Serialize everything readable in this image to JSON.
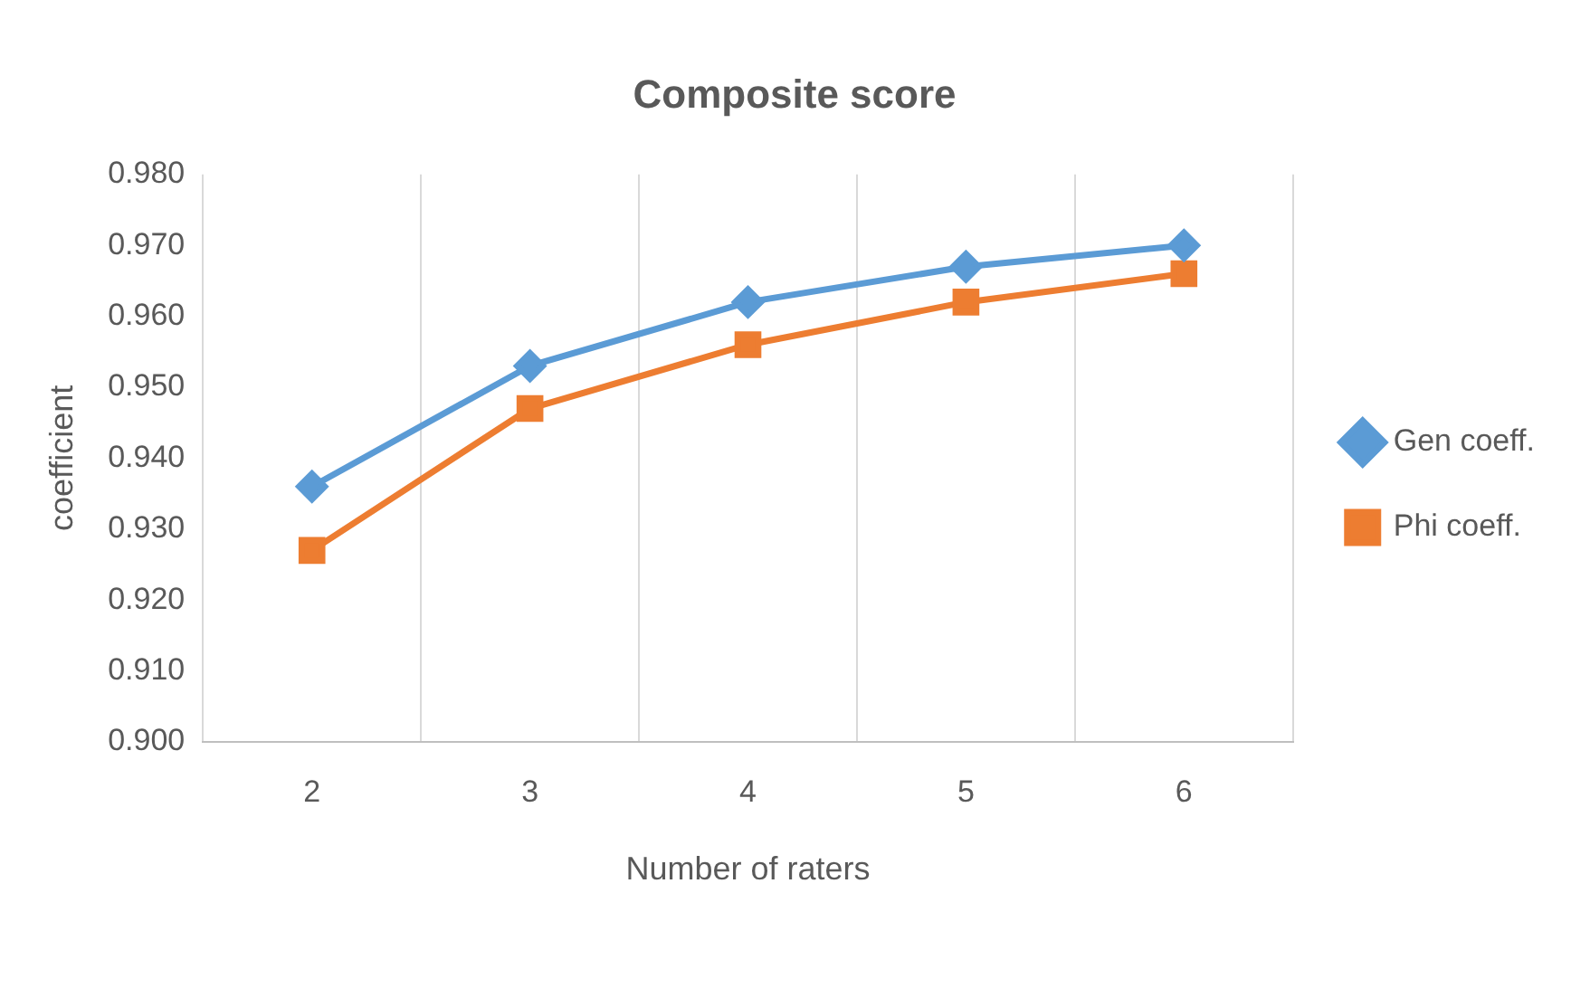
{
  "chart_data": {
    "type": "line",
    "title": "Composite score",
    "xlabel": "Number of raters",
    "ylabel": "coefficient",
    "categories": [
      "2",
      "3",
      "4",
      "5",
      "6"
    ],
    "series": [
      {
        "name": "Gen coeff.",
        "color": "#5b9bd5",
        "marker": "diamond",
        "values": [
          0.936,
          0.953,
          0.962,
          0.967,
          0.97
        ]
      },
      {
        "name": "Phi coeff.",
        "color": "#ed7d31",
        "marker": "square",
        "values": [
          0.927,
          0.947,
          0.956,
          0.962,
          0.966
        ]
      }
    ],
    "ylim": [
      0.9,
      0.98
    ],
    "yticks": [
      {
        "value": 0.9,
        "label": "0.900"
      },
      {
        "value": 0.91,
        "label": "0.910"
      },
      {
        "value": 0.92,
        "label": "0.920"
      },
      {
        "value": 0.93,
        "label": "0.930"
      },
      {
        "value": 0.94,
        "label": "0.940"
      },
      {
        "value": 0.95,
        "label": "0.950"
      },
      {
        "value": 0.96,
        "label": "0.960"
      },
      {
        "value": 0.97,
        "label": "0.970"
      },
      {
        "value": 0.98,
        "label": "0.980"
      }
    ],
    "grid": "x",
    "legend": "right",
    "line_style": "solid"
  }
}
